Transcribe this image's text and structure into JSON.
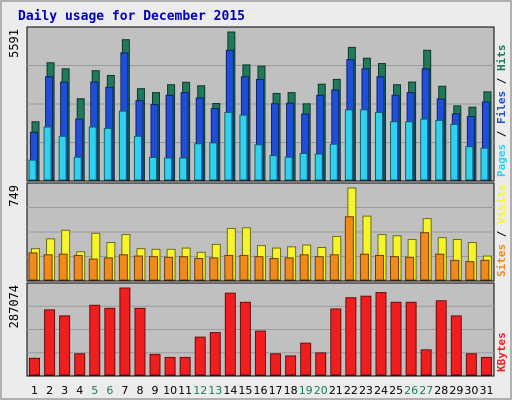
{
  "chart_data": {
    "type": "bar",
    "title": "Daily usage for December 2015",
    "categories": [
      "1",
      "2",
      "3",
      "4",
      "5",
      "6",
      "7",
      "8",
      "9",
      "10",
      "11",
      "12",
      "13",
      "14",
      "15",
      "16",
      "17",
      "18",
      "19",
      "20",
      "21",
      "22",
      "23",
      "24",
      "25",
      "26",
      "27",
      "28",
      "29",
      "30",
      "31"
    ],
    "weekend_days": [
      "5",
      "6",
      "12",
      "13",
      "19",
      "20",
      "26",
      "27"
    ],
    "colors": {
      "hits": "#1f7a5c",
      "files": "#1f4fd8",
      "pages": "#2cd2f0",
      "visits": "#f5f52a",
      "sites": "#f08a1a",
      "kbytes": "#f01e1e",
      "weekday_label": "#000000",
      "weekend_label": "#1f7a5c",
      "plot_background": "#c0c0c0"
    },
    "panels": [
      {
        "id": "hits-files-pages",
        "max_label": "5591",
        "ylim": [
          0,
          5591
        ],
        "legend": [
          "Pages",
          "Files",
          "Hits"
        ],
        "series": [
          {
            "name": "Hits",
            "values": [
              2200,
              4430,
              4200,
              3070,
              4130,
              3950,
              5300,
              3450,
              3300,
              3600,
              3690,
              3560,
              2890,
              5591,
              4350,
              4300,
              3270,
              3300,
              2880,
              3620,
              3800,
              5010,
              4600,
              4400,
              3600,
              3700,
              4900,
              3540,
              2800,
              2750,
              3330
            ]
          },
          {
            "name": "Files",
            "values": [
              1800,
              3900,
              3700,
              2300,
              3700,
              3500,
              4800,
              3000,
              2850,
              3200,
              3300,
              3100,
              2700,
              4900,
              3900,
              3800,
              2880,
              2900,
              2490,
              3200,
              3400,
              4550,
              4200,
              3900,
              3200,
              3300,
              4200,
              3060,
              2500,
              2400,
              2950
            ]
          },
          {
            "name": "Pages",
            "values": [
              750,
              2000,
              1650,
              860,
              2000,
              1950,
              2600,
              1650,
              850,
              830,
              830,
              1370,
              1400,
              2550,
              2450,
              1330,
              920,
              860,
              1000,
              980,
              1350,
              2650,
              2650,
              2550,
              2200,
              2200,
              2300,
              2250,
              2100,
              1260,
              1200
            ]
          }
        ]
      },
      {
        "id": "visits-sites",
        "max_label": "749",
        "ylim": [
          0,
          749
        ],
        "legend": [
          "Sites",
          "Visits"
        ],
        "series": [
          {
            "name": "Visits",
            "values": [
              255,
              335,
              405,
              230,
              380,
              305,
              370,
              255,
              250,
              250,
              260,
              225,
              290,
              420,
              425,
              280,
              260,
              270,
              285,
              265,
              355,
              749,
              520,
              370,
              360,
              330,
              500,
              345,
              330,
              305,
              195
            ]
          },
          {
            "name": "Sites",
            "values": [
              220,
              205,
              210,
              200,
              170,
              180,
              205,
              195,
              190,
              185,
              190,
              175,
              180,
              200,
              200,
              190,
              175,
              180,
              205,
              190,
              205,
              515,
              210,
              200,
              190,
              185,
              385,
              210,
              160,
              150,
              160
            ]
          }
        ]
      },
      {
        "id": "kbytes",
        "max_label": "287074",
        "ylim": [
          0,
          287074
        ],
        "legend": [
          "KBytes"
        ],
        "series": [
          {
            "name": "KBytes",
            "values": [
              55000,
              215000,
              195000,
              70000,
              230000,
              220000,
              287074,
              220000,
              68000,
              58000,
              58000,
              125000,
              140000,
              270000,
              240000,
              145000,
              70000,
              63000,
              105000,
              73000,
              218000,
              255000,
              260000,
              272000,
              240000,
              240000,
              83000,
              245000,
              195000,
              70000,
              58000
            ]
          }
        ]
      }
    ]
  }
}
